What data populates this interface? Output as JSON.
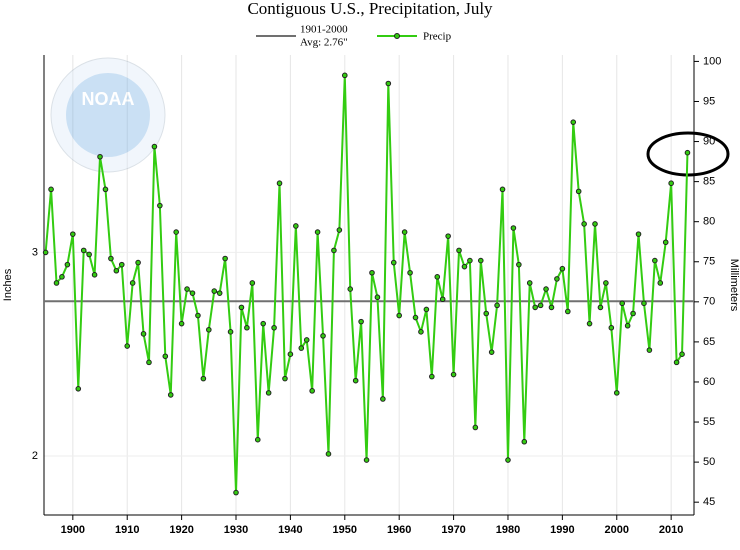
{
  "chart_data": {
    "type": "line",
    "title": "Contiguous U.S., Precipitation, July",
    "y_label": "Inches",
    "y2_label": "Millimeters",
    "logo_text": "NOAA",
    "average": {
      "name_lines": [
        "1901-2000",
        "Avg: 2.76\""
      ],
      "value": 2.76,
      "color": "#707070"
    },
    "x": [
      1895,
      1896,
      1897,
      1898,
      1899,
      1900,
      1901,
      1902,
      1903,
      1904,
      1905,
      1906,
      1907,
      1908,
      1909,
      1910,
      1911,
      1912,
      1913,
      1914,
      1915,
      1916,
      1917,
      1918,
      1919,
      1920,
      1921,
      1922,
      1923,
      1924,
      1925,
      1926,
      1927,
      1928,
      1929,
      1930,
      1931,
      1932,
      1933,
      1934,
      1935,
      1936,
      1937,
      1938,
      1939,
      1940,
      1941,
      1942,
      1943,
      1944,
      1945,
      1946,
      1947,
      1948,
      1949,
      1950,
      1951,
      1952,
      1953,
      1954,
      1955,
      1956,
      1957,
      1958,
      1959,
      1960,
      1961,
      1962,
      1963,
      1964,
      1965,
      1966,
      1967,
      1968,
      1969,
      1970,
      1971,
      1972,
      1973,
      1974,
      1975,
      1976,
      1977,
      1978,
      1979,
      1980,
      1981,
      1982,
      1983,
      1984,
      1985,
      1986,
      1987,
      1988,
      1989,
      1990,
      1991,
      1992,
      1993,
      1994,
      1995,
      1996,
      1997,
      1998,
      1999,
      2000,
      2001,
      2002,
      2003,
      2004,
      2005,
      2006,
      2007,
      2008,
      2009,
      2010,
      2011,
      2012,
      2013
    ],
    "series": [
      {
        "name": "Precip",
        "color": "#33cc11",
        "values": [
          3.0,
          3.31,
          2.85,
          2.88,
          2.94,
          3.09,
          2.33,
          3.01,
          2.99,
          2.89,
          3.47,
          3.31,
          2.97,
          2.91,
          2.94,
          2.54,
          2.85,
          2.95,
          2.6,
          2.46,
          3.52,
          3.23,
          2.49,
          2.3,
          3.1,
          2.65,
          2.82,
          2.8,
          2.69,
          2.38,
          2.62,
          2.81,
          2.8,
          2.97,
          2.61,
          1.82,
          2.73,
          2.63,
          2.85,
          2.08,
          2.65,
          2.31,
          2.63,
          3.34,
          2.38,
          2.5,
          3.13,
          2.53,
          2.57,
          2.32,
          3.1,
          2.59,
          2.01,
          3.01,
          3.11,
          3.87,
          2.82,
          2.37,
          2.66,
          1.98,
          2.9,
          2.78,
          2.28,
          3.83,
          2.95,
          2.69,
          3.1,
          2.9,
          2.68,
          2.61,
          2.72,
          2.39,
          2.88,
          2.77,
          3.08,
          2.4,
          3.01,
          2.93,
          2.96,
          2.14,
          2.96,
          2.7,
          2.51,
          2.74,
          3.31,
          1.98,
          3.12,
          2.94,
          2.07,
          2.85,
          2.73,
          2.74,
          2.82,
          2.73,
          2.87,
          2.92,
          2.71,
          3.64,
          3.3,
          3.14,
          2.65,
          3.14,
          2.73,
          2.85,
          2.63,
          2.31,
          2.75,
          2.64,
          2.7,
          3.09,
          2.75,
          2.52,
          2.96,
          2.85,
          3.05,
          3.34,
          2.46,
          2.5,
          3.49
        ]
      }
    ],
    "xlim": [
      1894.7,
      2014.2
    ],
    "xticks": [
      1900,
      1910,
      1920,
      1930,
      1940,
      1950,
      1960,
      1970,
      1980,
      1990,
      2000,
      2010
    ],
    "ylim": [
      1.71,
      3.97
    ],
    "yticks": [
      2,
      3
    ],
    "y2lim": [
      43.4,
      100.8
    ],
    "y2ticks": [
      45,
      50,
      55,
      60,
      65,
      70,
      75,
      80,
      85,
      90,
      95,
      100
    ],
    "grid": true
  }
}
